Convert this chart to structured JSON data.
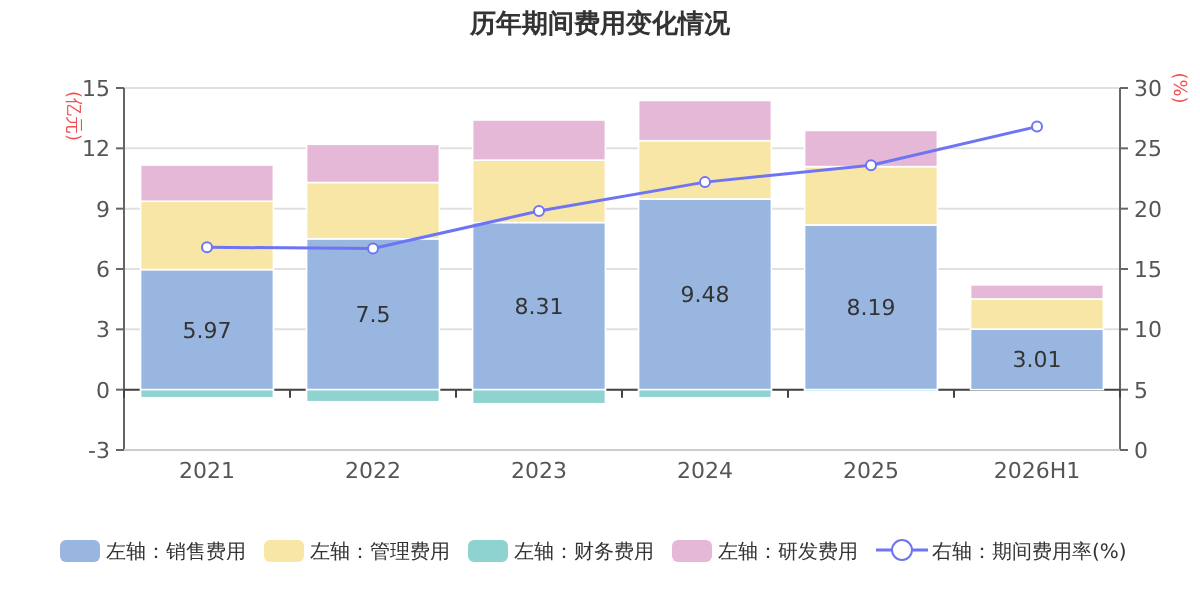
{
  "chart_data": {
    "type": "bar",
    "title": "历年期间费用变化情况",
    "ylabel": "(亿元)",
    "y2label": "(%)",
    "categories": [
      "2021",
      "2022",
      "2023",
      "2024",
      "2025",
      "2026H1"
    ],
    "stacked": true,
    "grid": "y",
    "legend": "bottom",
    "ylim": [
      -3,
      15
    ],
    "yticks": [
      -3,
      0,
      3,
      6,
      9,
      12,
      15
    ],
    "y2lim": [
      0,
      30
    ],
    "y2ticks": [
      0,
      5,
      10,
      15,
      20,
      25,
      30
    ],
    "series": [
      {
        "name": "左轴：销售费用",
        "color": "#98b6e0",
        "values": [
          5.97,
          7.5,
          8.31,
          9.48,
          8.19,
          3.01
        ],
        "value_labels": [
          "5.97",
          "7.5",
          "8.31",
          "9.48",
          "8.19",
          "3.01"
        ]
      },
      {
        "name": "左轴：管理费用",
        "color": "#f8e6a6",
        "values": [
          3.4,
          2.8,
          3.1,
          2.9,
          2.9,
          1.5
        ]
      },
      {
        "name": "左轴：财务费用",
        "color": "#8fd3d0",
        "values": [
          -0.4,
          -0.6,
          -0.7,
          -0.4,
          -0.1,
          0
        ]
      },
      {
        "name": "左轴：研发费用",
        "color": "#e6b8d8",
        "values": [
          1.8,
          1.9,
          2.0,
          2.0,
          1.8,
          0.7
        ]
      },
      {
        "name": "右轴：期间费用率(%)",
        "type": "line",
        "axis": "y2",
        "marker": "circle",
        "color": "#6f74f5",
        "values": [
          16.8,
          16.7,
          19.8,
          22.2,
          23.6,
          26.8
        ]
      }
    ]
  }
}
